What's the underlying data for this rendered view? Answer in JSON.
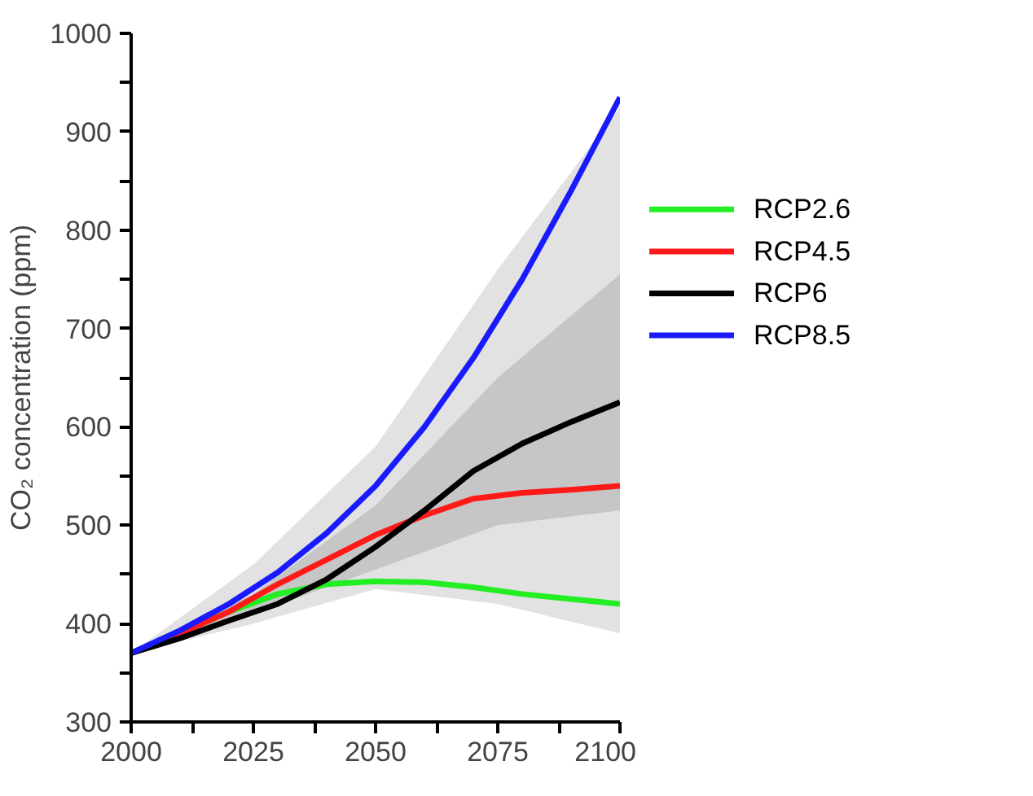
{
  "chart_data": {
    "type": "line",
    "ylabel": "CO₂ concentration (ppm)",
    "x": [
      2000,
      2010,
      2020,
      2030,
      2040,
      2050,
      2060,
      2070,
      2080,
      2090,
      2100
    ],
    "series": [
      {
        "type": "area",
        "color": "#e2e2e2",
        "x": [
          2000,
          2025,
          2050,
          2075,
          2100
        ],
        "values": [
          null,
          null,
          null,
          null,
          null
        ],
        "upper": [
          370,
          460,
          580,
          760,
          925
        ],
        "lower": [
          370,
          400,
          435,
          420,
          390
        ]
      },
      {
        "type": "area",
        "color": "#c6c6c6",
        "x": [
          2000,
          2025,
          2050,
          2075,
          2100
        ],
        "values": [
          null,
          null,
          null,
          null,
          null
        ],
        "upper": [
          370,
          430,
          520,
          650,
          755
        ],
        "lower": [
          370,
          410,
          455,
          500,
          515
        ]
      },
      {
        "name": "RCP2.6",
        "color": "#22ee22",
        "values": [
          370,
          390,
          412,
          430,
          440,
          443,
          442,
          437,
          430,
          425,
          420
        ]
      },
      {
        "name": "RCP4.5",
        "color": "#ff1a1a",
        "values": [
          370,
          390,
          412,
          440,
          465,
          490,
          510,
          527,
          533,
          536,
          540
        ]
      },
      {
        "name": "RCP6",
        "color": "#000000",
        "values": [
          370,
          385,
          403,
          420,
          445,
          478,
          515,
          555,
          583,
          605,
          625
        ]
      },
      {
        "name": "RCP8.5",
        "color": "#1a1aff",
        "values": [
          370,
          393,
          420,
          452,
          492,
          540,
          600,
          670,
          750,
          840,
          935
        ]
      }
    ],
    "xlim": [
      2000,
      2100
    ],
    "ylim": [
      300,
      1000
    ],
    "xticks": [
      2000,
      {
        "value": 2012.5,
        "label": null
      },
      2025,
      {
        "value": 2037.5,
        "label": null
      },
      2050,
      {
        "value": 2062.5,
        "label": null
      },
      2075,
      {
        "value": 2087.5,
        "label": null
      },
      2100
    ],
    "yticks": [
      300,
      {
        "value": 350,
        "label": null
      },
      400,
      {
        "value": 450,
        "label": null
      },
      500,
      {
        "value": 550,
        "label": null
      },
      600,
      {
        "value": 650,
        "label": null
      },
      700,
      {
        "value": 750,
        "label": null
      },
      800,
      {
        "value": 850,
        "label": null
      },
      900,
      {
        "value": 950,
        "label": null
      },
      1000
    ],
    "grid": false,
    "legend": "right",
    "line_style": "solid",
    "marker": "none"
  }
}
